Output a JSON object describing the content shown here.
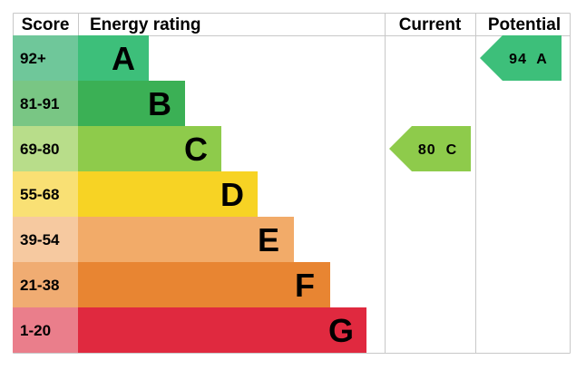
{
  "headers": {
    "score": "Score",
    "energy_rating": "Energy rating",
    "current": "Current",
    "potential": "Potential"
  },
  "chart_data": {
    "type": "bar",
    "bands": [
      {
        "score_range": "92+",
        "letter": "A",
        "color": "#3dbf7a",
        "score_color": "#6fc79a"
      },
      {
        "score_range": "81-91",
        "letter": "B",
        "color": "#3bb055",
        "score_color": "#79c684"
      },
      {
        "score_range": "69-80",
        "letter": "C",
        "color": "#8ecb4b",
        "score_color": "#b8dd8a"
      },
      {
        "score_range": "55-68",
        "letter": "D",
        "color": "#f7d324",
        "score_color": "#f9e074"
      },
      {
        "score_range": "39-54",
        "letter": "E",
        "color": "#f2ab69",
        "score_color": "#f6c9a0"
      },
      {
        "score_range": "21-38",
        "letter": "F",
        "color": "#e88532",
        "score_color": "#f0ac72"
      },
      {
        "score_range": "1-20",
        "letter": "G",
        "color": "#e0293f",
        "score_color": "#ea7e8b"
      }
    ],
    "current": {
      "value": 80,
      "letter": "C",
      "label": "80  C",
      "color": "#8ecb4b"
    },
    "potential": {
      "value": 94,
      "letter": "A",
      "label": "94  A",
      "color": "#3dbf7a"
    }
  }
}
